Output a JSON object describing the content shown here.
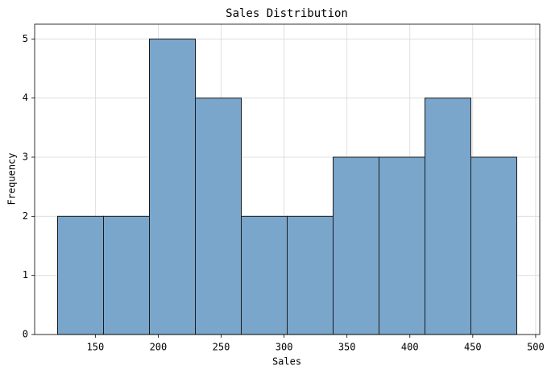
{
  "chart_data": {
    "type": "histogram",
    "title": "Sales Distribution",
    "x_label": "Sales",
    "y_label": "Frequency",
    "bins": [
      120,
      156.5,
      193,
      229.5,
      266,
      302.5,
      339,
      375.5,
      412,
      448.5,
      485
    ],
    "values": [
      2,
      2,
      5,
      4,
      2,
      2,
      3,
      3,
      4,
      3
    ],
    "color": "#7aa6cc",
    "edgecolor": "#1a1a1a",
    "xlim": [
      101.75,
      503.25
    ],
    "ylim": [
      0,
      5.25
    ],
    "xticks": [
      150,
      200,
      250,
      300,
      350,
      400,
      450,
      500
    ],
    "yticks": [
      0,
      1,
      2,
      3,
      4,
      5
    ],
    "grid": true
  }
}
